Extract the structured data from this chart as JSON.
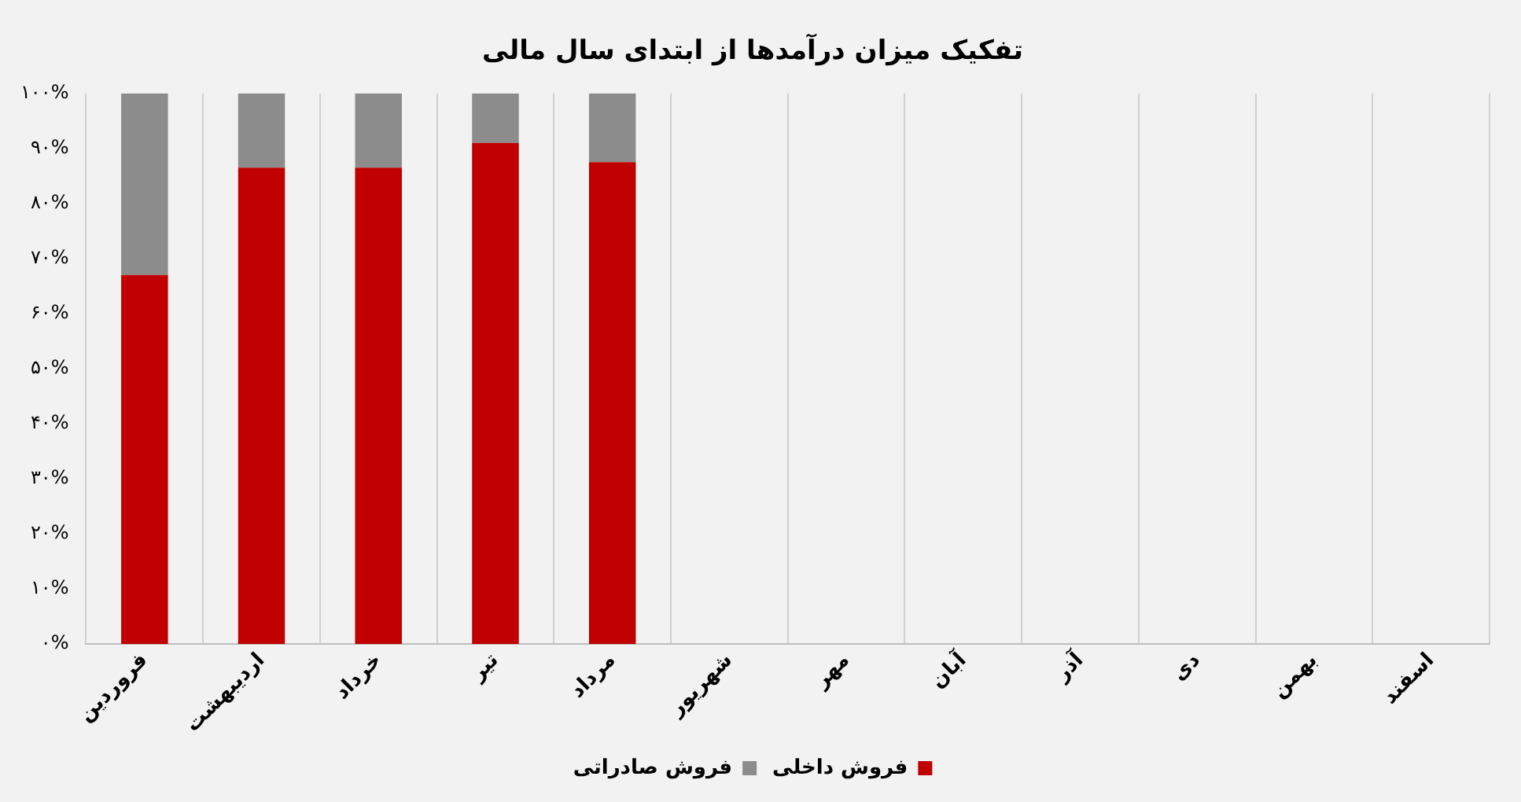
{
  "chart_data": {
    "type": "bar",
    "title": "تفکیک میزان درآمدها از ابتدای سال مالی",
    "categories": [
      "فروردین",
      "اردیبهشت",
      "خرداد",
      "تیر",
      "مرداد",
      "شهریور",
      "مهر",
      "آبان",
      "آذر",
      "دی",
      "بهمن",
      "اسفند"
    ],
    "stacked": true,
    "series": [
      {
        "name": "فروش داخلی",
        "color": "#c00000",
        "values": [
          67,
          86.5,
          86.5,
          91,
          87.5,
          null,
          null,
          null,
          null,
          null,
          null,
          null
        ]
      },
      {
        "name": "فروش صادراتی",
        "color": "#8c8c8c",
        "values": [
          33,
          13.5,
          13.5,
          9,
          12.5,
          null,
          null,
          null,
          null,
          null,
          null,
          null
        ]
      }
    ],
    "ylim": [
      0,
      100
    ],
    "yticks": [
      {
        "value": 0,
        "label": "۰%"
      },
      {
        "value": 10,
        "label": "۱۰%"
      },
      {
        "value": 20,
        "label": "۲۰%"
      },
      {
        "value": 30,
        "label": "۳۰%"
      },
      {
        "value": 40,
        "label": "۴۰%"
      },
      {
        "value": 50,
        "label": "۵۰%"
      },
      {
        "value": 60,
        "label": "۶۰%"
      },
      {
        "value": 70,
        "label": "۷۰%"
      },
      {
        "value": 80,
        "label": "۸۰%"
      },
      {
        "value": 90,
        "label": "۹۰%"
      },
      {
        "value": 100,
        "label": "۱۰۰%"
      }
    ],
    "grid": "x",
    "legend": "bottom"
  }
}
